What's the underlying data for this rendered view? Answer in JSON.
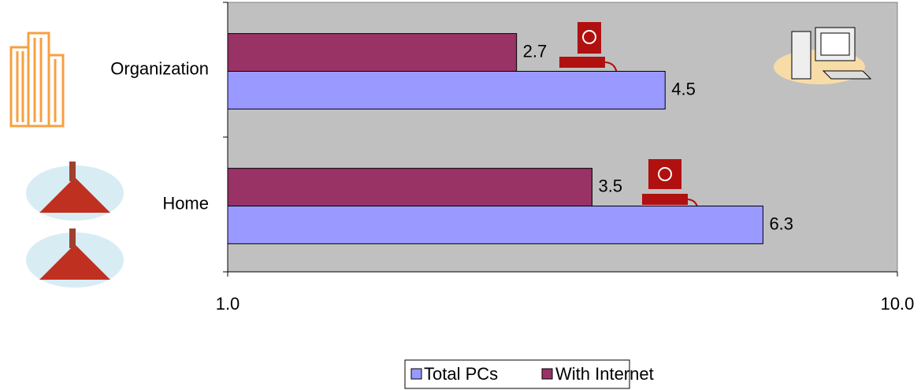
{
  "chart_data": {
    "type": "hbar",
    "categories": [
      "Organization",
      "Home"
    ],
    "series": [
      {
        "name": "Total PCs",
        "color": "#9999ff",
        "values": [
          4.5,
          6.3
        ]
      },
      {
        "name": "With Internet",
        "color": "#993366",
        "values": [
          2.7,
          3.5
        ]
      }
    ],
    "xlim": [
      1,
      10
    ],
    "xticks": [
      {
        "value": 1,
        "label": "1.0"
      },
      {
        "value": 10,
        "label": "10.0"
      }
    ],
    "xscale": "log",
    "legend": "bottom"
  }
}
